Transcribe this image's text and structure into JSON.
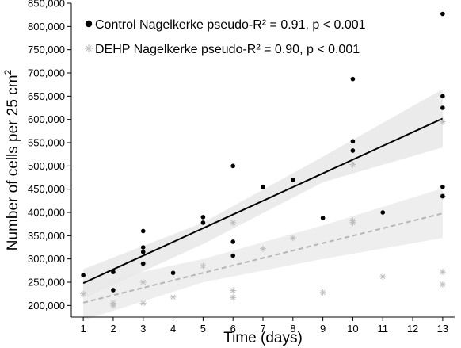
{
  "chart_data": {
    "type": "scatter",
    "xlabel": "Time (days)",
    "ylabel": "Number of cells per 25 cm",
    "ylabel_superscript": "2",
    "xlim": [
      0.6,
      13.4
    ],
    "ylim": [
      175000,
      850000
    ],
    "x_ticks": [
      1,
      2,
      3,
      4,
      5,
      6,
      7,
      8,
      9,
      10,
      11,
      12,
      13
    ],
    "y_ticks": [
      200000,
      250000,
      300000,
      350000,
      400000,
      450000,
      500000,
      550000,
      600000,
      650000,
      700000,
      750000,
      800000,
      850000
    ],
    "y_tick_labels": [
      "200,000",
      "250,000",
      "300,000",
      "350,000",
      "400,000",
      "450,000",
      "500,000",
      "550,000",
      "600,000",
      "650,000",
      "700,000",
      "750,000",
      "800,000",
      "850,000"
    ],
    "x_tick_labels": [
      "1",
      "2",
      "3",
      "4",
      "5",
      "6",
      "7",
      "8",
      "9",
      "10",
      "11",
      "12",
      "13"
    ],
    "grid": false,
    "legend_position": "top-left",
    "series": [
      {
        "name": "Control Nagelkerke pseudo-R² = 0.91, p < 0.001",
        "marker": "dot",
        "color": "#000000",
        "points": [
          [
            1,
            265000
          ],
          [
            2,
            272000
          ],
          [
            2,
            233000
          ],
          [
            3,
            360000
          ],
          [
            3,
            325000
          ],
          [
            3,
            315000
          ],
          [
            3,
            290000
          ],
          [
            4,
            270000
          ],
          [
            5,
            390000
          ],
          [
            5,
            378000
          ],
          [
            6,
            500000
          ],
          [
            6,
            337000
          ],
          [
            6,
            307000
          ],
          [
            7,
            455000
          ],
          [
            8,
            470000
          ],
          [
            9,
            388000
          ],
          [
            10,
            687000
          ],
          [
            10,
            553000
          ],
          [
            10,
            533000
          ],
          [
            11,
            400000
          ],
          [
            13,
            827000
          ],
          [
            13,
            650000
          ],
          [
            13,
            625000
          ],
          [
            13,
            455000
          ],
          [
            13,
            435000
          ]
        ],
        "fit": {
          "x": [
            1,
            13
          ],
          "y": [
            248000,
            602000
          ],
          "style": "solid"
        },
        "band": {
          "x": [
            1,
            5,
            9,
            13
          ],
          "lower": [
            215000,
            332000,
            465000,
            540000
          ],
          "upper": [
            278000,
            378000,
            520000,
            665000
          ]
        }
      },
      {
        "name": "DEHP Nagelkerke pseudo-R² = 0.90, p < 0.001",
        "marker": "asterisk",
        "color": "#bdbdbd",
        "points": [
          [
            1,
            225000
          ],
          [
            2,
            205000
          ],
          [
            2,
            200000
          ],
          [
            3,
            290000
          ],
          [
            3,
            250000
          ],
          [
            3,
            205000
          ],
          [
            4,
            218000
          ],
          [
            5,
            285000
          ],
          [
            6,
            378000
          ],
          [
            6,
            232000
          ],
          [
            6,
            217000
          ],
          [
            7,
            322000
          ],
          [
            8,
            345000
          ],
          [
            9,
            228000
          ],
          [
            10,
            503000
          ],
          [
            10,
            382000
          ],
          [
            10,
            378000
          ],
          [
            11,
            262000
          ],
          [
            13,
            595000
          ],
          [
            13,
            435000
          ],
          [
            13,
            272000
          ],
          [
            13,
            245000
          ]
        ],
        "fit": {
          "x": [
            1,
            13
          ],
          "y": [
            206000,
            398000
          ],
          "style": "dashed"
        },
        "band": {
          "x": [
            1,
            5,
            9,
            13
          ],
          "lower": [
            168000,
            250000,
            300000,
            345000
          ],
          "upper": [
            245000,
            300000,
            372000,
            452000
          ]
        }
      }
    ],
    "colors": {
      "control_line": "#000000",
      "dehp_line": "#b5b5b5",
      "band_fill": "#e8e8e8",
      "axis": "#000000"
    }
  }
}
